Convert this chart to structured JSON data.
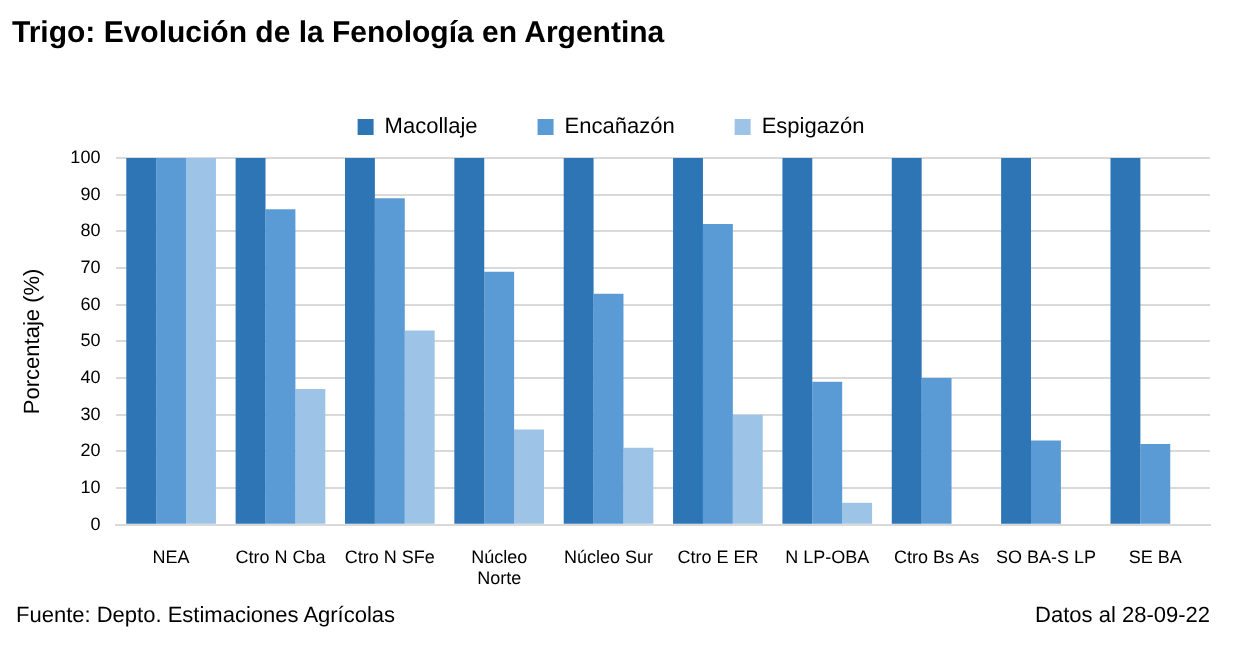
{
  "chart_data": {
    "type": "bar",
    "title": "Trigo: Evolución de la Fenología en Argentina",
    "ylabel": "Porcentaje (%)",
    "categories": [
      "NEA",
      "Ctro N Cba",
      "Ctro N SFe",
      "Núcleo Norte",
      "Núcleo Sur",
      "Ctro E ER",
      "N LP-OBA",
      "Ctro Bs As",
      "SO BA-S LP",
      "SE BA"
    ],
    "series": [
      {
        "name": "Macollaje",
        "color": "#2e75b6",
        "values": [
          100,
          100,
          100,
          100,
          100,
          100,
          100,
          100,
          100,
          100
        ]
      },
      {
        "name": "Encañazón",
        "color": "#5b9bd5",
        "values": [
          100,
          86,
          89,
          69,
          63,
          82,
          39,
          40,
          23,
          22
        ]
      },
      {
        "name": "Espigazón",
        "color": "#9dc3e6",
        "values": [
          100,
          37,
          53,
          26,
          21,
          30,
          6,
          0,
          0,
          0
        ]
      }
    ],
    "ylim": [
      0,
      100
    ],
    "yticks": [
      0,
      10,
      20,
      30,
      40,
      50,
      60,
      70,
      80,
      90,
      100
    ],
    "grid": "y",
    "legend": "top",
    "annotations": [
      "Fuente: Depto. Estimaciones Agrícolas",
      "Datos al 28-09-22"
    ]
  }
}
